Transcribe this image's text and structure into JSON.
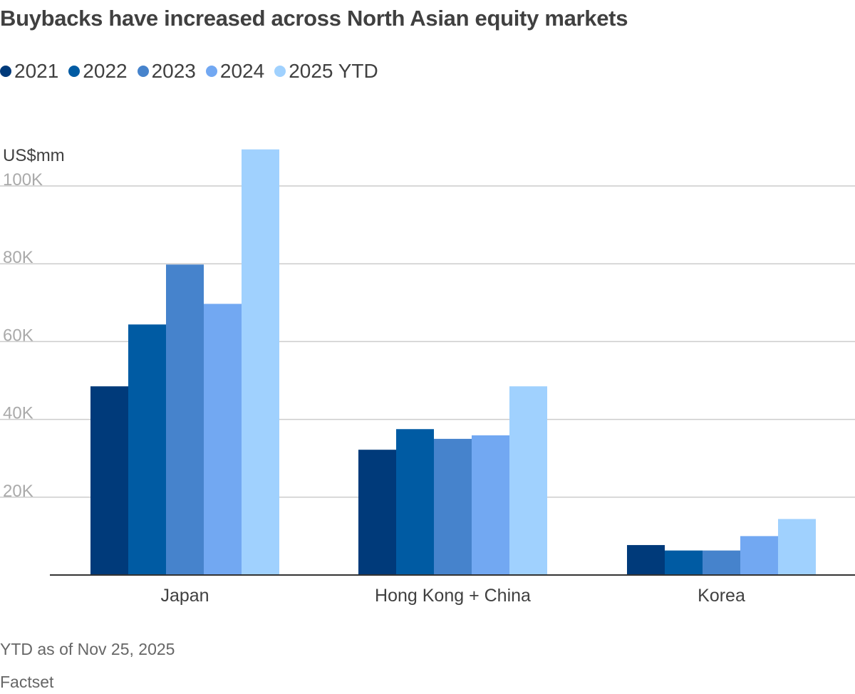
{
  "title": "Buybacks have increased across North Asian equity markets",
  "footnote": "YTD as of Nov 25, 2025",
  "source": "Factset",
  "chart_data": {
    "type": "bar",
    "title": "Buybacks have increased across North Asian equity markets",
    "ylabel": "US$mm",
    "xlabel": "",
    "categories": [
      "Japan",
      "Hong Kong + China",
      "Korea"
    ],
    "ylim": [
      0,
      110000
    ],
    "yticks": [
      20000,
      40000,
      60000,
      80000,
      100000
    ],
    "ytick_labels": [
      "20K",
      "40K",
      "60K",
      "80K",
      "100K"
    ],
    "grid": true,
    "legend_position": "top-left",
    "series": [
      {
        "name": "2021",
        "color": "#003a7a",
        "values": [
          48500,
          32200,
          7700
        ]
      },
      {
        "name": "2022",
        "color": "#005ba3",
        "values": [
          64400,
          37500,
          6300
        ]
      },
      {
        "name": "2023",
        "color": "#4683cc",
        "values": [
          79800,
          35000,
          6300
        ]
      },
      {
        "name": "2024",
        "color": "#72a8f2",
        "values": [
          69700,
          35900,
          10000
        ]
      },
      {
        "name": "2025 YTD",
        "color": "#a0d1fe",
        "values": [
          109400,
          48500,
          14400
        ]
      }
    ]
  }
}
